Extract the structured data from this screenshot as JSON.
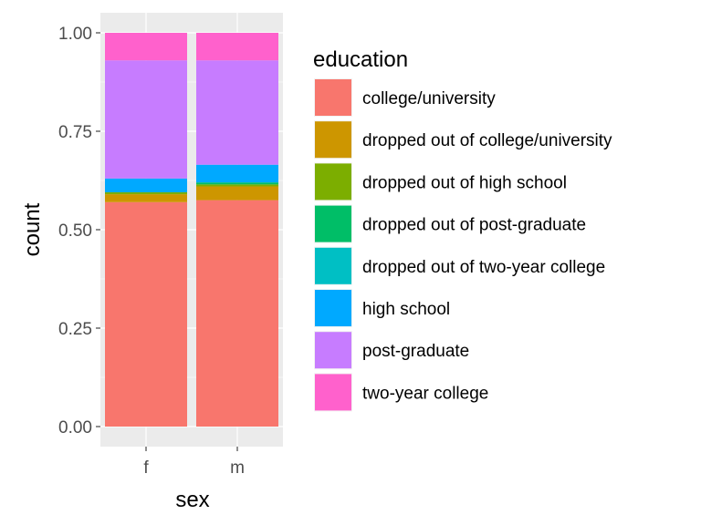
{
  "chart_data": {
    "type": "bar",
    "stacked": true,
    "position": "fill",
    "categories": [
      "f",
      "m"
    ],
    "xlabel": "sex",
    "ylabel": "count",
    "ylim": [
      0,
      1
    ],
    "yticks": [
      "0.00",
      "0.25",
      "0.50",
      "0.75",
      "1.00"
    ],
    "grid": true,
    "legend": {
      "title": "education",
      "placement": "right"
    },
    "series": [
      {
        "name": "college/university",
        "color": "#F8766D",
        "values": [
          0.57,
          0.575
        ]
      },
      {
        "name": "dropped out of college/university",
        "color": "#CD9600",
        "values": [
          0.02,
          0.035
        ]
      },
      {
        "name": "dropped out of high school",
        "color": "#7CAE00",
        "values": [
          0.005,
          0.005
        ]
      },
      {
        "name": "dropped out of post-graduate",
        "color": "#00BE67",
        "values": [
          0.0,
          0.005
        ]
      },
      {
        "name": "dropped out of two-year college",
        "color": "#00BFC4",
        "values": [
          0.0,
          0.0
        ]
      },
      {
        "name": "high school",
        "color": "#00A9FF",
        "values": [
          0.035,
          0.045
        ]
      },
      {
        "name": "post-graduate",
        "color": "#C77CFF",
        "values": [
          0.3,
          0.265
        ]
      },
      {
        "name": "two-year college",
        "color": "#FF61CC",
        "values": [
          0.07,
          0.07
        ]
      }
    ]
  }
}
